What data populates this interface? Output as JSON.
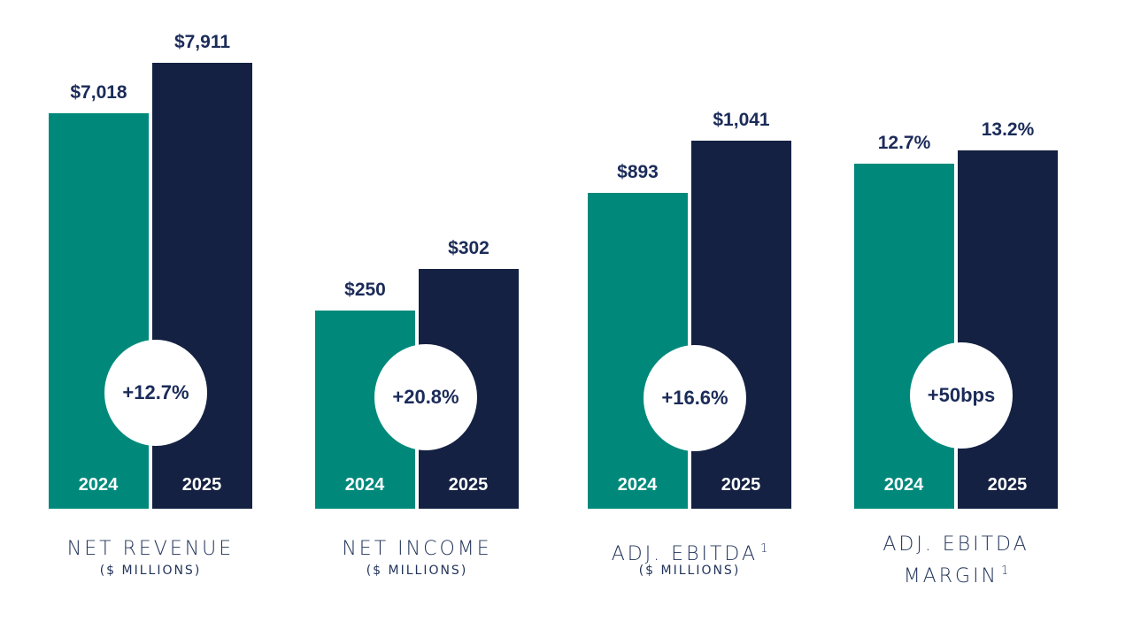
{
  "colors": {
    "teal": "#00897B",
    "navy": "#142142",
    "text": "#1B2B59",
    "label": "#22345A"
  },
  "chart_data": {
    "type": "bar",
    "series_names": [
      "2024",
      "2025"
    ],
    "groups": [
      {
        "title": "NET REVENUE",
        "title_line2": "",
        "superscript": "",
        "subtitle": "($ MILLIONS)",
        "values": [
          7018,
          7911
        ],
        "value_labels": [
          "$7,018",
          "$7,911"
        ],
        "change": "+12.7%"
      },
      {
        "title": "NET INCOME",
        "title_line2": "",
        "superscript": "",
        "subtitle": "($ MILLIONS)",
        "values": [
          250,
          302
        ],
        "value_labels": [
          "$250",
          "$302"
        ],
        "change": "+20.8%"
      },
      {
        "title": "ADJ. EBITDA",
        "title_line2": "",
        "superscript": "1",
        "subtitle": "($ MILLIONS)",
        "values": [
          893,
          1041
        ],
        "value_labels": [
          "$893",
          "$1,041"
        ],
        "change": "+16.6%"
      },
      {
        "title": "ADJ. EBITDA",
        "title_line2": "MARGIN",
        "superscript": "1",
        "subtitle": "",
        "values": [
          12.7,
          13.2
        ],
        "value_labels": [
          "12.7%",
          "13.2%"
        ],
        "change": "+50bps"
      }
    ]
  }
}
